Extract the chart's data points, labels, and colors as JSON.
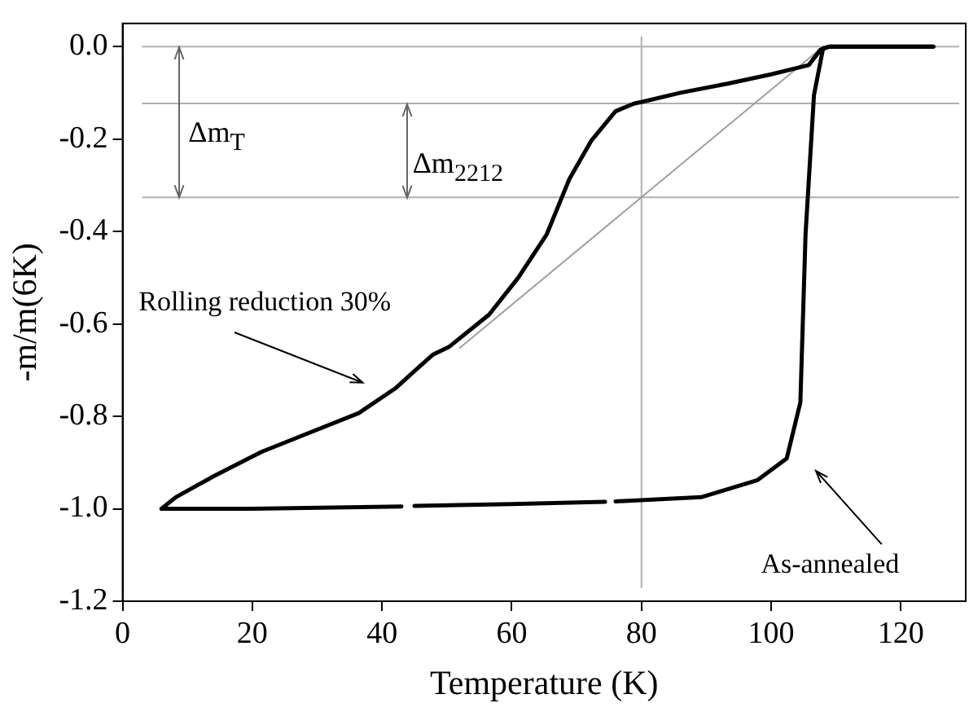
{
  "chart_data": {
    "type": "line",
    "xlabel": "Temperature (K)",
    "ylabel": "-m/m(6K)",
    "xlim": [
      0,
      130
    ],
    "xticks": [
      0,
      20,
      40,
      60,
      80,
      100,
      120
    ],
    "ylim": [
      -1.2,
      0.05
    ],
    "yticks": [
      {
        "value": -1.2,
        "label": "-1.2"
      },
      {
        "value": -1,
        "label": "-1.0"
      },
      -0.8,
      -0.6,
      -0.4,
      -0.2,
      {
        "value": 0,
        "label": "0.0"
      }
    ],
    "grid": false,
    "legend": false,
    "marker": "none",
    "line_style": "solid",
    "series": [
      {
        "color": "#000000",
        "x": [
          6,
          8.2,
          14,
          21.4,
          28,
          36.4,
          42,
          47.8,
          50.4,
          56.5,
          61,
          65.4,
          68.9,
          72.3,
          76,
          78.9,
          80,
          86,
          93.4,
          100,
          105.8,
          107.6,
          109,
          115,
          125
        ],
        "values": [
          -1.0,
          -0.975,
          -0.93,
          -0.877,
          -0.84,
          -0.793,
          -0.74,
          -0.667,
          -0.649,
          -0.58,
          -0.5,
          -0.406,
          -0.286,
          -0.203,
          -0.14,
          -0.123,
          -0.12,
          -0.1,
          -0.08,
          -0.06,
          -0.04,
          -0.007,
          0,
          0,
          0
        ]
      },
      {
        "color": "#000000",
        "x": [
          6,
          20,
          43,
          44,
          45,
          60,
          71.5,
          74.4,
          75,
          76,
          89.2,
          97.9,
          102.4,
          104.5,
          105.3,
          106.6,
          108,
          109,
          125
        ],
        "values": [
          -1.0,
          -1.0,
          -0.995,
          null,
          -0.994,
          -0.99,
          -0.986,
          -0.985,
          null,
          -0.984,
          -0.975,
          -0.938,
          -0.891,
          -0.77,
          -0.406,
          -0.105,
          -0.004,
          0,
          0
        ]
      },
      {
        "color": "#a0a0a0",
        "x": [
          52,
          108
        ],
        "values": [
          -0.652,
          0
        ]
      }
    ],
    "ref_lines": [
      {
        "axis": "y",
        "value": 0,
        "color": "#b0b0b0"
      },
      {
        "axis": "y",
        "value": -0.123,
        "color": "#b0b0b0"
      },
      {
        "axis": "y",
        "value": -0.326,
        "color": "#b0b0b0"
      },
      {
        "axis": "x",
        "value": 80,
        "color": "#b0b0b0"
      }
    ],
    "annotations": [
      "Δm$_{T}$",
      "Δm$_{2212}$",
      "Rolling reduction 30%",
      "As-annealed"
    ]
  }
}
